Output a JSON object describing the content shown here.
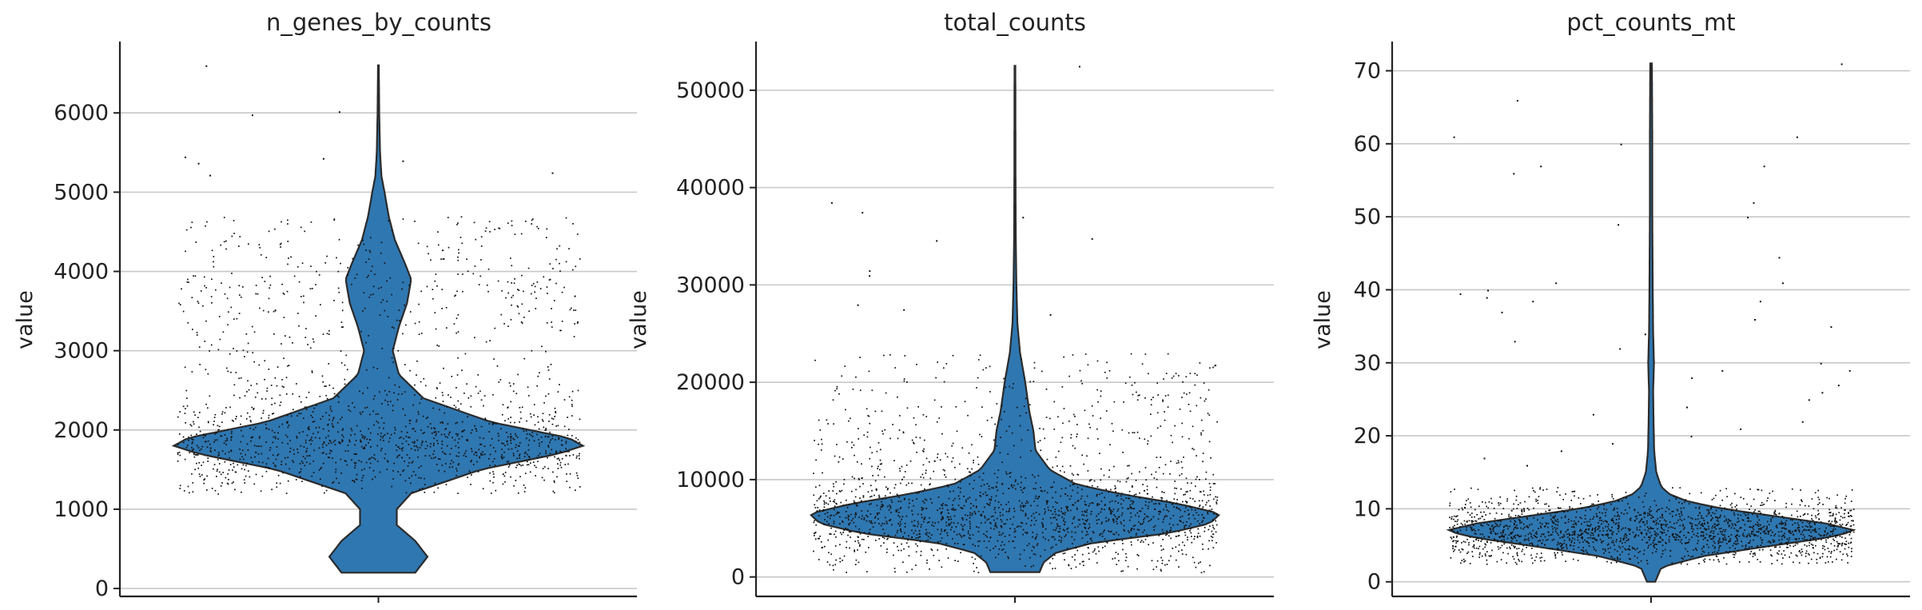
{
  "colors": {
    "violin_fill": "#2f77b1",
    "violin_edge": "#2b2b2b",
    "point": "#111111",
    "grid": "#c8c8c8"
  },
  "chart_data": [
    {
      "type": "violin",
      "title": "n_genes_by_counts",
      "xlabel": "",
      "ylabel": "value",
      "grid": true,
      "jitter_points": true,
      "ylim": [
        -100,
        6900
      ],
      "yticks": [
        0,
        1000,
        2000,
        3000,
        4000,
        5000,
        6000
      ],
      "ytick_labels": [
        "0",
        "1000",
        "2000",
        "3000",
        "4000",
        "5000",
        "6000"
      ],
      "data_range": [
        200,
        6600
      ],
      "bulk_range": [
        1200,
        4700
      ],
      "density_profile": [
        [
          200,
          0.18
        ],
        [
          400,
          0.24
        ],
        [
          600,
          0.18
        ],
        [
          800,
          0.09
        ],
        [
          1000,
          0.09
        ],
        [
          1200,
          0.16
        ],
        [
          1500,
          0.5
        ],
        [
          1700,
          0.88
        ],
        [
          1800,
          1.0
        ],
        [
          1900,
          0.93
        ],
        [
          2100,
          0.55
        ],
        [
          2400,
          0.22
        ],
        [
          2700,
          0.1
        ],
        [
          3000,
          0.07
        ],
        [
          3300,
          0.1
        ],
        [
          3600,
          0.14
        ],
        [
          3900,
          0.16
        ],
        [
          4100,
          0.13
        ],
        [
          4400,
          0.08
        ],
        [
          4700,
          0.05
        ],
        [
          5000,
          0.03
        ],
        [
          5200,
          0.015
        ],
        [
          5500,
          0.008
        ],
        [
          6000,
          0.004
        ],
        [
          6600,
          0.002
        ]
      ],
      "outliers": [
        6600,
        6020,
        5980,
        5450,
        5400,
        5430,
        5370,
        5250,
        5220
      ]
    },
    {
      "type": "violin",
      "title": "total_counts",
      "xlabel": "",
      "ylabel": "value",
      "grid": true,
      "jitter_points": true,
      "ylim": [
        -2000,
        55000
      ],
      "yticks": [
        0,
        10000,
        20000,
        30000,
        40000,
        50000
      ],
      "ytick_labels": [
        "0",
        "10000",
        "20000",
        "30000",
        "40000",
        "50000"
      ],
      "data_range": [
        500,
        52500
      ],
      "bulk_range": [
        500,
        23000
      ],
      "density_profile": [
        [
          500,
          0.12
        ],
        [
          1500,
          0.14
        ],
        [
          2500,
          0.2
        ],
        [
          3500,
          0.38
        ],
        [
          4500,
          0.75
        ],
        [
          5500,
          0.95
        ],
        [
          6500,
          1.0
        ],
        [
          7500,
          0.8
        ],
        [
          8500,
          0.52
        ],
        [
          9500,
          0.3
        ],
        [
          11000,
          0.17
        ],
        [
          13000,
          0.1
        ],
        [
          15000,
          0.09
        ],
        [
          17000,
          0.07
        ],
        [
          20000,
          0.05
        ],
        [
          23000,
          0.025
        ],
        [
          26000,
          0.012
        ],
        [
          30000,
          0.007
        ],
        [
          35000,
          0.004
        ],
        [
          40000,
          0.003
        ],
        [
          52500,
          0.002
        ]
      ],
      "outliers": [
        52500,
        38500,
        37500,
        37000,
        34800,
        34600,
        31500,
        31000,
        28000,
        27500,
        27000
      ]
    },
    {
      "type": "violin",
      "title": "pct_counts_mt",
      "xlabel": "",
      "ylabel": "value",
      "grid": true,
      "jitter_points": true,
      "ylim": [
        -2,
        74
      ],
      "yticks": [
        0,
        10,
        20,
        30,
        40,
        50,
        60,
        70
      ],
      "ytick_labels": [
        "0",
        "10",
        "20",
        "30",
        "40",
        "50",
        "60",
        "70"
      ],
      "data_range": [
        0,
        71
      ],
      "bulk_range": [
        2.5,
        13
      ],
      "density_profile": [
        [
          0,
          0.02
        ],
        [
          2,
          0.05
        ],
        [
          3.5,
          0.25
        ],
        [
          5,
          0.6
        ],
        [
          6,
          0.85
        ],
        [
          7,
          1.0
        ],
        [
          8,
          0.85
        ],
        [
          9,
          0.6
        ],
        [
          10,
          0.35
        ],
        [
          11,
          0.18
        ],
        [
          12,
          0.09
        ],
        [
          13,
          0.05
        ],
        [
          15,
          0.025
        ],
        [
          18,
          0.015
        ],
        [
          22,
          0.012
        ],
        [
          26,
          0.01
        ],
        [
          30,
          0.014
        ],
        [
          34,
          0.01
        ],
        [
          40,
          0.008
        ],
        [
          50,
          0.006
        ],
        [
          60,
          0.006
        ],
        [
          71,
          0.004
        ]
      ],
      "outliers": [
        71,
        66,
        61,
        61,
        60,
        57,
        57,
        56,
        52,
        50,
        49,
        44.5,
        41,
        41,
        40,
        39.5,
        39,
        38.5,
        38.5,
        37,
        36,
        35,
        34,
        33,
        32,
        30,
        29,
        29,
        28,
        27,
        26,
        25,
        24,
        23,
        22,
        21,
        20,
        19,
        18,
        17,
        16
      ]
    }
  ]
}
